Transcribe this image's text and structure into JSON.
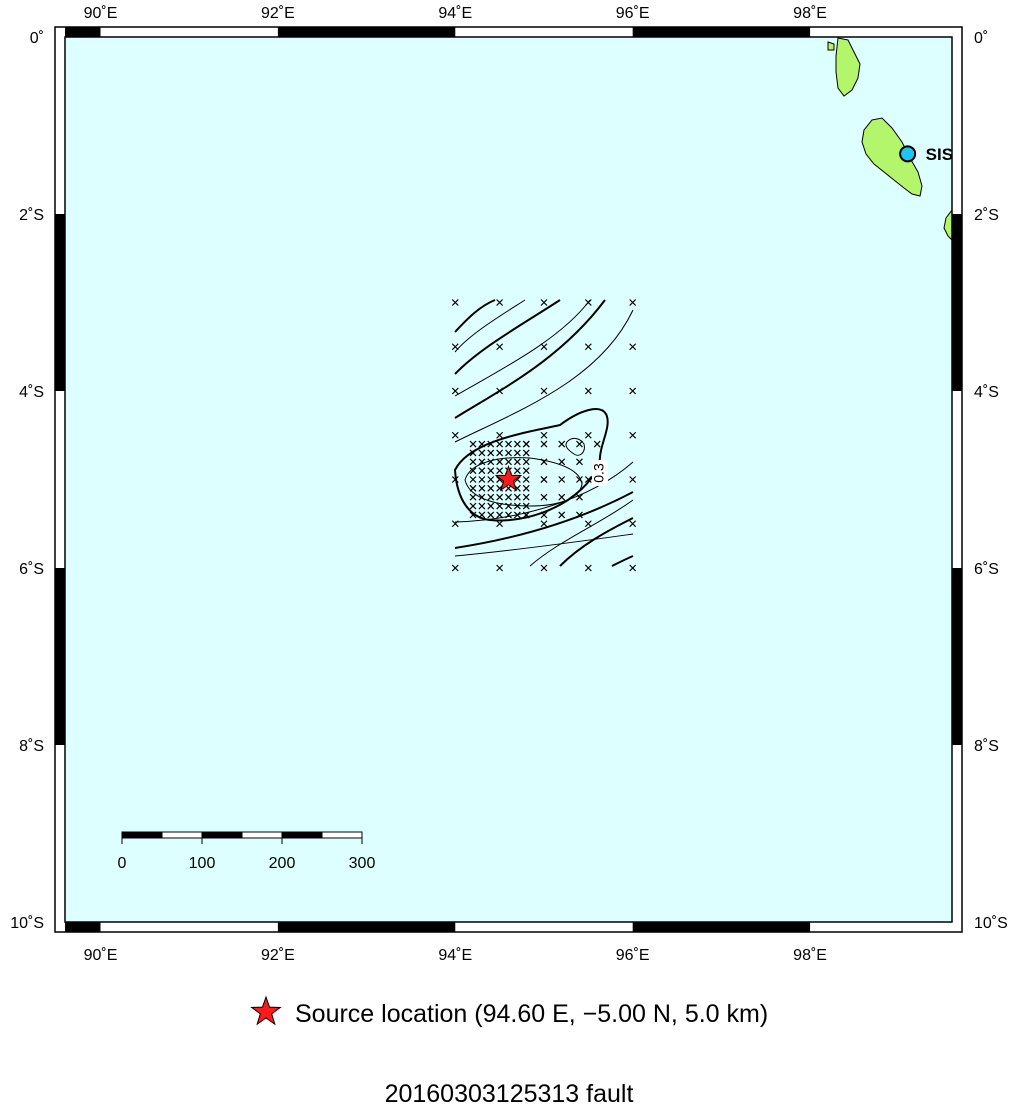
{
  "map": {
    "lon_range": [
      89.6,
      99.6
    ],
    "lat_range": [
      -10.0,
      0.0
    ],
    "lon_ticks": [
      {
        "value": 90,
        "label": "90˚E"
      },
      {
        "value": 92,
        "label": "92˚E"
      },
      {
        "value": 94,
        "label": "94˚E"
      },
      {
        "value": 96,
        "label": "96˚E"
      },
      {
        "value": 98,
        "label": "98˚E"
      }
    ],
    "lat_ticks": [
      {
        "value": 0,
        "label": "0˚"
      },
      {
        "value": -2,
        "label": "2˚S"
      },
      {
        "value": -4,
        "label": "4˚S"
      },
      {
        "value": -6,
        "label": "6˚S"
      },
      {
        "value": -8,
        "label": "8˚S"
      },
      {
        "value": -10,
        "label": "10˚S"
      }
    ],
    "colors": {
      "ocean": "#deffff",
      "land": "#b3f56b",
      "source": "#ff1a1a",
      "station": "#21c4f0"
    },
    "station": {
      "code": "SIS",
      "lon": 99.1,
      "lat": -1.32
    },
    "source": {
      "lon": 94.6,
      "lat": -5.0
    },
    "contour_label": "0.3",
    "grid_points": {
      "lon_min": 94.0,
      "lon_max": 96.0,
      "lon_step": 0.5,
      "lat_min": -6.0,
      "lat_max": -3.0,
      "lat_step": 0.5,
      "fine_lon_min": 94.2,
      "fine_lon_max": 94.8,
      "fine_lat_min": -5.4,
      "fine_lat_max": -4.6,
      "fine_step": 0.1
    }
  },
  "scale_bar": {
    "unit": "km",
    "ticks": [
      {
        "value": 0,
        "label": "0"
      },
      {
        "value": 100,
        "label": "100"
      },
      {
        "value": 200,
        "label": "200"
      },
      {
        "value": 300,
        "label": "300"
      }
    ]
  },
  "legend": {
    "source_label": "Source location (94.60 E, −5.00 N, 5.0 km)"
  },
  "title": "20160303125313 fault"
}
